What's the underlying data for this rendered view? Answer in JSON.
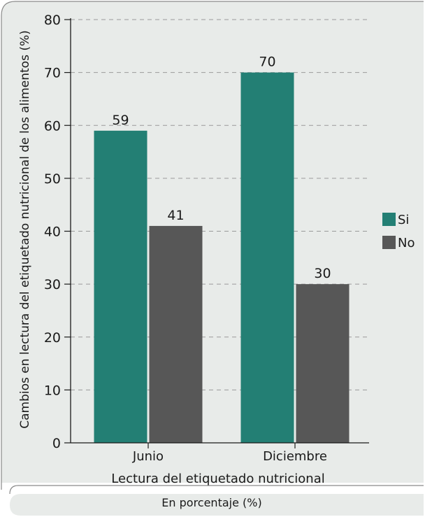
{
  "chart_data": {
    "type": "bar",
    "title": "",
    "xlabel": "Lectura del etiquetado nutricional",
    "ylabel": "Cambios en lectura del etiquetado nutricional de los alimentos (%)",
    "categories": [
      "Junio",
      "Diciembre"
    ],
    "series": [
      {
        "name": "Si",
        "values": [
          59,
          70
        ],
        "color": "#237f74"
      },
      {
        "name": "No",
        "values": [
          41,
          30
        ],
        "color": "#575757"
      }
    ],
    "ylim": [
      0,
      80
    ],
    "yticks": [
      "0",
      "10",
      "20",
      "30",
      "40",
      "50",
      "60",
      "70",
      "80"
    ],
    "grid": "horizontal-dashed",
    "legend_position": "right",
    "data_labels": true
  },
  "footnote": "En porcentaje (%)",
  "colors": {
    "panel_background": "#e8ebe9",
    "border": "#8a8a8a",
    "grid": "#9a9a9a"
  }
}
